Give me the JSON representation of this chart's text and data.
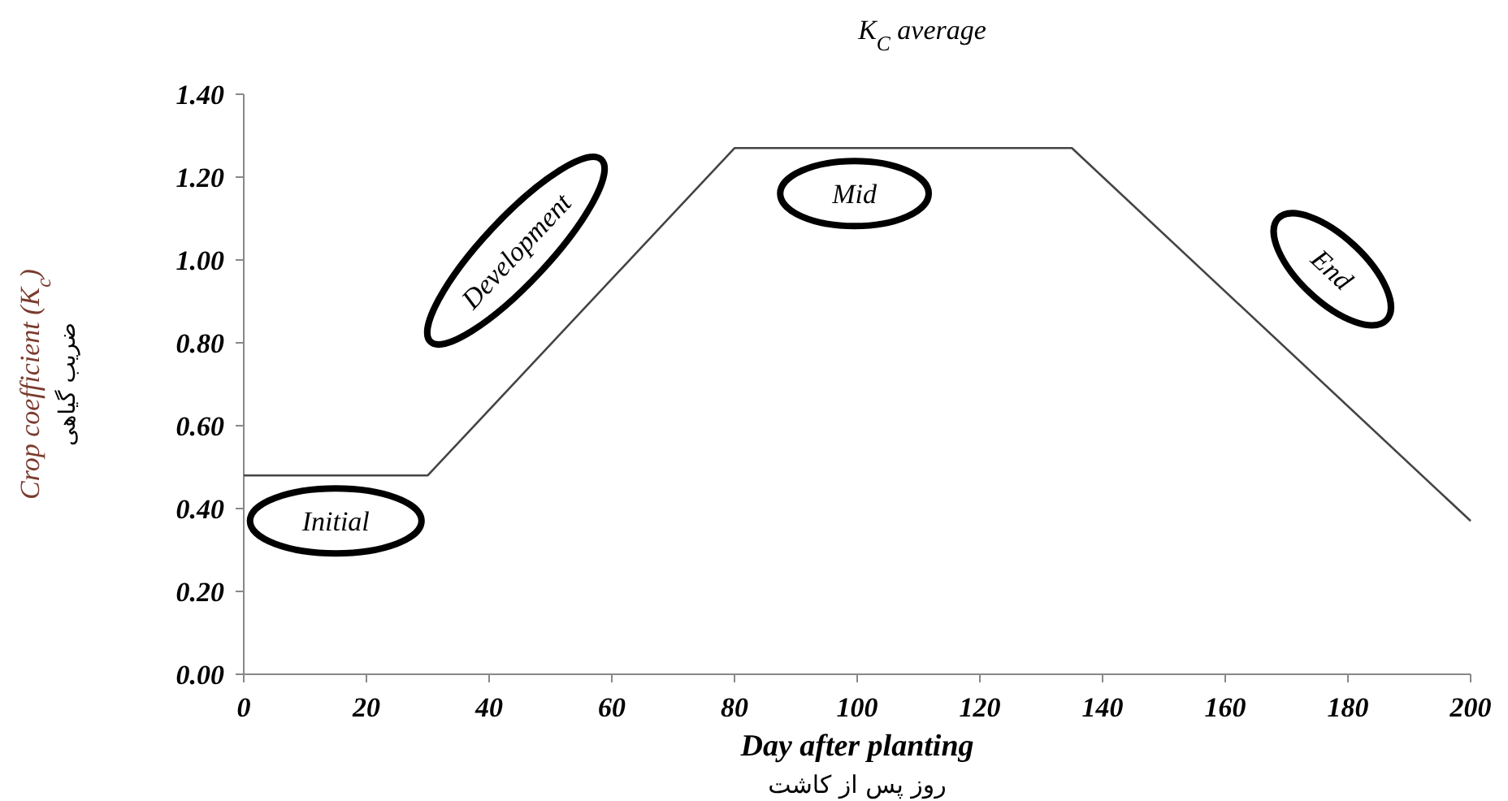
{
  "chart_data": {
    "type": "line",
    "title": "K$_{C}$ average",
    "xlabel": "Day after planting\nروز پس از کاشت",
    "ylabel": "Crop coefficient (K$_{c}$)\nضریب گیاهی",
    "x": [
      0,
      30,
      80,
      135,
      200
    ],
    "series": [
      {
        "color": "#444444",
        "values": [
          0.48,
          0.48,
          1.27,
          1.27,
          0.37
        ]
      }
    ],
    "xlim": [
      0,
      200
    ],
    "xticks": [
      0,
      20,
      40,
      60,
      80,
      100,
      120,
      140,
      160,
      180,
      200
    ],
    "ylim": [
      0,
      1.4
    ],
    "yticks": [
      {
        "value": 0,
        "label": "0.00"
      },
      {
        "value": 0.2,
        "label": "0.20"
      },
      {
        "value": 0.4,
        "label": "0.40"
      },
      {
        "value": 0.6,
        "label": "0.60"
      },
      {
        "value": 0.8,
        "label": "0.80"
      },
      {
        "value": 1.0,
        "label": "1.00"
      },
      {
        "value": 1.2,
        "label": "1.20"
      },
      {
        "value": 1.4,
        "label": "1.40"
      }
    ],
    "grid": false,
    "marker": "none",
    "line_style": "solid",
    "annotations": [
      "Initial",
      "Development",
      "Mid",
      "End"
    ]
  }
}
